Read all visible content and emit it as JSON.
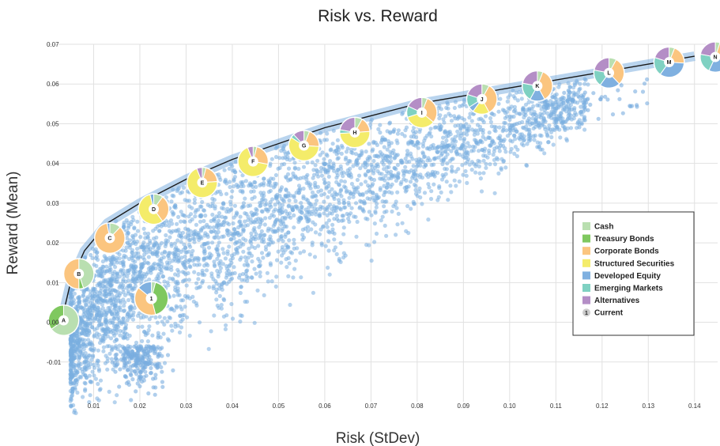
{
  "colors": {
    "cash": "#b9dfb0",
    "treasury": "#7fc85f",
    "corporate": "#fbc57f",
    "structured": "#f4ec6a",
    "developed": "#7fb0e0",
    "emerging": "#7fd1c2",
    "alternatives": "#b48ec6",
    "scatter": "#7aaee0",
    "frontier": "#1a1a1a",
    "grid": "#e1e1e1"
  },
  "chart_data": {
    "type": "scatter",
    "title": "Risk vs. Reward",
    "xlabel": "Risk (StDev)",
    "ylabel": "Reward (Mean)",
    "xlim": [
      0,
      0.145
    ],
    "ylim": [
      -0.02,
      0.07
    ],
    "xticks": [
      "0.01",
      "0.02",
      "0.03",
      "0.04",
      "0.05",
      "0.06",
      "0.07",
      "0.08",
      "0.09",
      "0.10",
      "0.11",
      "0.12",
      "0.13",
      "0.14"
    ],
    "yticks": [
      "0.07",
      "0.06",
      "0.05",
      "0.04",
      "0.03",
      "0.02",
      "0.01",
      "0.00",
      "-0.01"
    ],
    "grid": true,
    "legend_position": "right",
    "legend": [
      {
        "key": "cash",
        "label": "Cash"
      },
      {
        "key": "treasury",
        "label": "Treasury Bonds"
      },
      {
        "key": "corporate",
        "label": "Corporate Bonds"
      },
      {
        "key": "structured",
        "label": "Structured Securities"
      },
      {
        "key": "developed",
        "label": "Developed Equity"
      },
      {
        "key": "emerging",
        "label": "Emerging Markets"
      },
      {
        "key": "alternatives",
        "label": "Alternatives"
      },
      {
        "key": "current",
        "label": "Current",
        "marker": "1"
      }
    ],
    "scatter_description": "Cloud of simulated portfolios below the efficient frontier",
    "frontier": [
      [
        0.003,
        0.0
      ],
      [
        0.005,
        0.01
      ],
      [
        0.008,
        0.018
      ],
      [
        0.013,
        0.025
      ],
      [
        0.02,
        0.03
      ],
      [
        0.03,
        0.036
      ],
      [
        0.04,
        0.041
      ],
      [
        0.05,
        0.045
      ],
      [
        0.06,
        0.049
      ],
      [
        0.07,
        0.052
      ],
      [
        0.08,
        0.055
      ],
      [
        0.09,
        0.057
      ],
      [
        0.1,
        0.059
      ],
      [
        0.11,
        0.061
      ],
      [
        0.12,
        0.063
      ],
      [
        0.13,
        0.065
      ],
      [
        0.14,
        0.067
      ]
    ],
    "portfolios": [
      {
        "label": "A",
        "x": 0.0035,
        "y": 0.0005,
        "weights": {
          "cash": 0.65,
          "treasury": 0.35
        }
      },
      {
        "label": "B",
        "x": 0.0068,
        "y": 0.0122,
        "weights": {
          "cash": 0.45,
          "treasury": 0.05,
          "corporate": 0.5
        }
      },
      {
        "label": "C",
        "x": 0.0135,
        "y": 0.0212,
        "weights": {
          "cash": 0.12,
          "corporate": 0.85,
          "developed": 0.03
        }
      },
      {
        "label": "D",
        "x": 0.023,
        "y": 0.0285,
        "weights": {
          "cash": 0.1,
          "corporate": 0.3,
          "structured": 0.56,
          "developed": 0.04
        }
      },
      {
        "label": "E",
        "x": 0.0335,
        "y": 0.0352,
        "weights": {
          "cash": 0.04,
          "corporate": 0.2,
          "structured": 0.7,
          "alternatives": 0.06
        }
      },
      {
        "label": "F",
        "x": 0.0445,
        "y": 0.0405,
        "weights": {
          "cash": 0.04,
          "corporate": 0.24,
          "structured": 0.66,
          "alternatives": 0.06
        }
      },
      {
        "label": "G",
        "x": 0.0555,
        "y": 0.0445,
        "weights": {
          "cash": 0.06,
          "corporate": 0.2,
          "structured": 0.58,
          "emerging": 0.04,
          "alternatives": 0.12
        }
      },
      {
        "label": "H",
        "x": 0.0665,
        "y": 0.0478,
        "weights": {
          "cash": 0.08,
          "corporate": 0.16,
          "structured": 0.5,
          "emerging": 0.04,
          "alternatives": 0.22
        }
      },
      {
        "label": "I",
        "x": 0.081,
        "y": 0.0528,
        "weights": {
          "cash": 0.06,
          "corporate": 0.3,
          "structured": 0.34,
          "emerging": 0.12,
          "alternatives": 0.18
        }
      },
      {
        "label": "J",
        "x": 0.094,
        "y": 0.0562,
        "weights": {
          "cash": 0.08,
          "corporate": 0.34,
          "structured": 0.18,
          "developed": 0.06,
          "emerging": 0.14,
          "alternatives": 0.2
        }
      },
      {
        "label": "K",
        "x": 0.106,
        "y": 0.0595,
        "weights": {
          "cash": 0.06,
          "corporate": 0.36,
          "developed": 0.16,
          "emerging": 0.2,
          "alternatives": 0.22
        }
      },
      {
        "label": "L",
        "x": 0.1215,
        "y": 0.0628,
        "weights": {
          "cash": 0.08,
          "corporate": 0.3,
          "developed": 0.22,
          "emerging": 0.18,
          "alternatives": 0.22
        }
      },
      {
        "label": "M",
        "x": 0.1345,
        "y": 0.0655,
        "weights": {
          "cash": 0.06,
          "corporate": 0.2,
          "developed": 0.34,
          "emerging": 0.2,
          "alternatives": 0.2
        }
      },
      {
        "label": "N",
        "x": 0.1445,
        "y": 0.0668,
        "weights": {
          "cash": 0.05,
          "corporate": 0.12,
          "developed": 0.4,
          "emerging": 0.21,
          "alternatives": 0.22
        }
      }
    ],
    "current": {
      "label": "1",
      "x": 0.0225,
      "y": 0.006,
      "weights": {
        "treasury": 0.42,
        "corporate": 0.4,
        "developed": 0.14,
        "cash": 0.04
      }
    }
  }
}
